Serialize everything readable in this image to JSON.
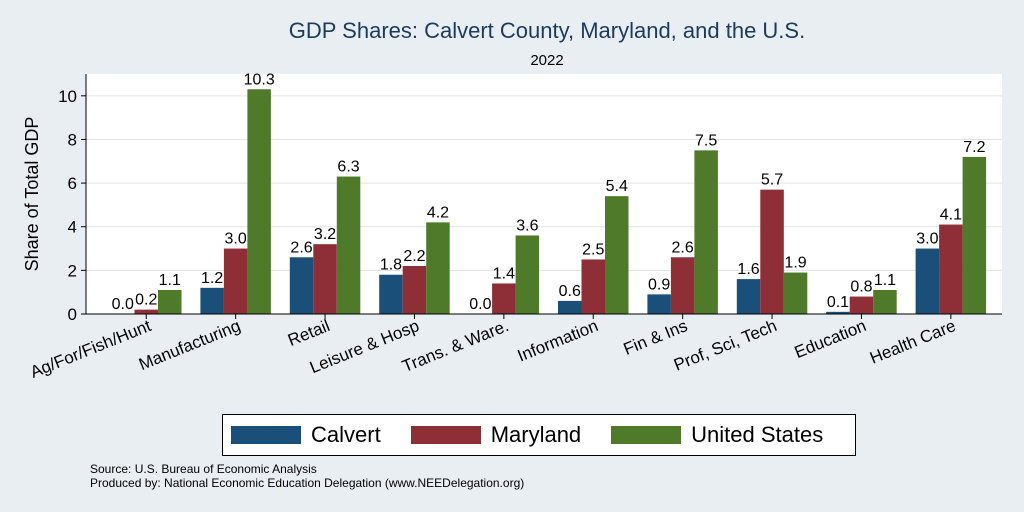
{
  "title": "GDP Shares: Calvert County, Maryland, and the U.S.",
  "subtitle": "2022",
  "source_line": "Source: U.S. Bureau of Economic Analysis",
  "produced_line": "Produced by: National Economic Education Delegation (www.NEEDelegation.org)",
  "colors": {
    "calvert": "#1a4f7a",
    "maryland": "#8e2e37",
    "us": "#4f7a2a"
  },
  "chart_data": {
    "type": "bar",
    "title": "GDP Shares: Calvert County, Maryland, and the U.S.",
    "subtitle": "2022",
    "ylabel": "Share of Total GDP",
    "xlabel": "",
    "ylim": [
      0,
      11
    ],
    "yticks": [
      0,
      2,
      4,
      6,
      8,
      10
    ],
    "grid": true,
    "legend": "bottom",
    "categories": [
      "Ag/For/Fish/Hunt",
      "Manufacturing",
      "Retail",
      "Leisure & Hosp",
      "Trans. & Ware.",
      "Information",
      "Fin & Ins",
      "Prof, Sci, Tech",
      "Education",
      "Health Care"
    ],
    "series": [
      {
        "name": "Calvert",
        "values": [
          0.0,
          1.2,
          2.6,
          1.8,
          0.0,
          0.6,
          0.9,
          1.6,
          0.1,
          3.0
        ]
      },
      {
        "name": "Maryland",
        "values": [
          0.2,
          3.0,
          3.2,
          2.2,
          1.4,
          2.5,
          2.6,
          5.7,
          0.8,
          4.1
        ]
      },
      {
        "name": "United States",
        "values": [
          1.1,
          10.3,
          6.3,
          4.2,
          3.6,
          5.4,
          7.5,
          1.9,
          1.1,
          7.2
        ]
      }
    ]
  }
}
